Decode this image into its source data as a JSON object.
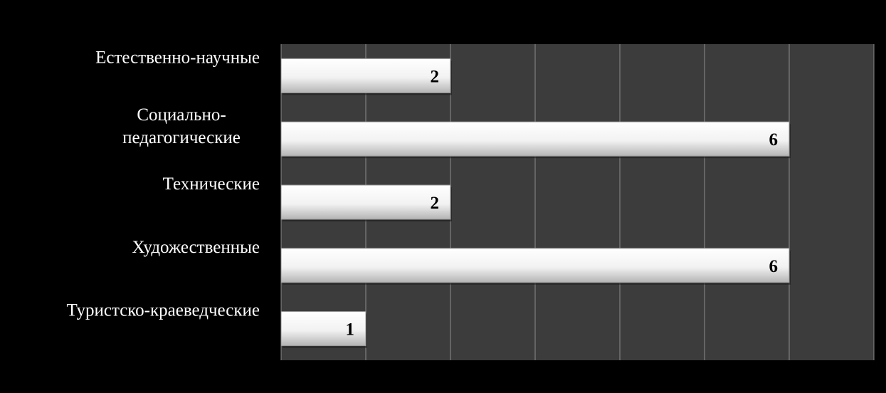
{
  "chart_data": {
    "type": "bar",
    "orientation": "horizontal",
    "categories": [
      "Естественно-научные",
      "Социально-педагогические",
      "Технические",
      "Художественные",
      "Туристско-краеведческие"
    ],
    "category_lines": [
      [
        "Естественно-научные"
      ],
      [
        "Социально-",
        "педагогические"
      ],
      [
        "Технические"
      ],
      [
        "Художественные"
      ],
      [
        "Туристско-краеведческие"
      ]
    ],
    "values": [
      2,
      6,
      2,
      6,
      1
    ],
    "data_labels": [
      "2",
      "6",
      "2",
      "6",
      "1"
    ],
    "xlim": [
      0,
      7
    ],
    "grid": true,
    "legend": "none",
    "title": "",
    "xlabel": "",
    "ylabel": "",
    "colors": {
      "background": "#000000",
      "plot_area": "#3c3c3c",
      "gridline": "#8c8c8c",
      "bar_light": "#ffffff",
      "bar_dark": "#b4b4b4",
      "label_text": "#ffffff",
      "value_text": "#000000"
    }
  }
}
